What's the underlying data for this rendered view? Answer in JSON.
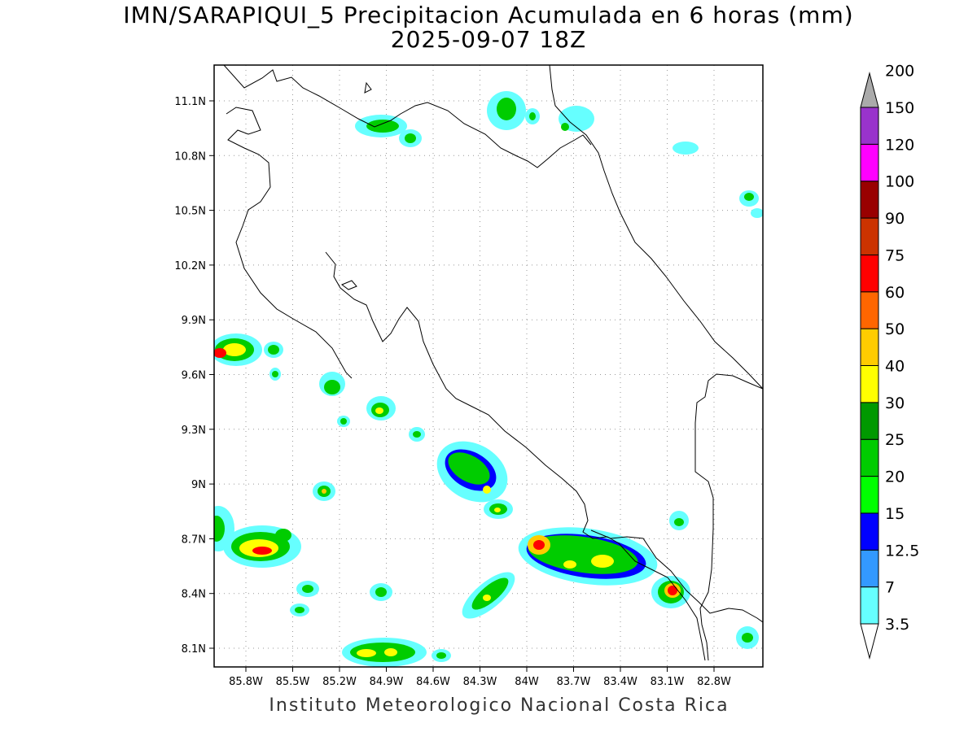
{
  "title_line1": "IMN/SARAPIQUI_5 Precipitacion Acumulada en 6 horas (mm)",
  "title_line2": "2025-09-07 18Z",
  "credit": "Instituto Meteorologico Nacional Costa Rica",
  "lat_labels": [
    "11.1N",
    "10.8N",
    "10.5N",
    "10.2N",
    "9.9N",
    "9.6N",
    "9.3N",
    "9N",
    "8.7N",
    "8.4N",
    "8.1N"
  ],
  "lon_labels": [
    "85.8W",
    "85.5W",
    "85.2W",
    "84.9W",
    "84.6W",
    "84.3W",
    "84W",
    "83.7W",
    "83.4W",
    "83.1W",
    "82.8W"
  ],
  "colorbar": {
    "labels": [
      "3.5",
      "7",
      "12.5",
      "15",
      "20",
      "25",
      "30",
      "40",
      "50",
      "60",
      "75",
      "90",
      "100",
      "120",
      "150",
      "200"
    ],
    "colors": [
      "#66ffff",
      "#3399ff",
      "#0000ff",
      "#00ff00",
      "#00cc00",
      "#009900",
      "#ffff00",
      "#ffcc00",
      "#ff6600",
      "#ff0000",
      "#cc3300",
      "#990000",
      "#ff00ff",
      "#9933cc",
      "#f5f5f5",
      "#aaaaaa"
    ]
  }
}
